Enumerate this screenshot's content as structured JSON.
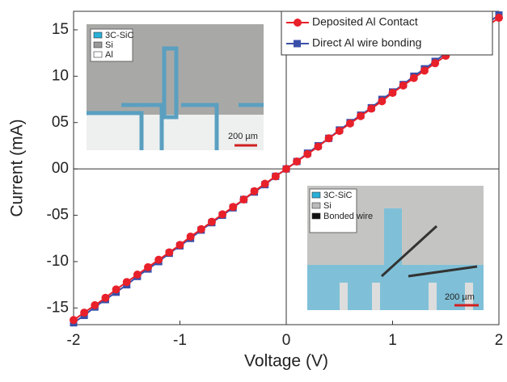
{
  "chart_data": {
    "type": "line",
    "x_label": "Voltage (V)",
    "y_label": "Current (mA)",
    "x": [
      -2,
      -1.9,
      -1.8,
      -1.7,
      -1.6,
      -1.5,
      -1.4,
      -1.3,
      -1.2,
      -1.1,
      -1,
      -0.9,
      -0.8,
      -0.7,
      -0.6,
      -0.5,
      -0.4,
      -0.3,
      -0.2,
      -0.1,
      0,
      0.1,
      0.2,
      0.3,
      0.4,
      0.5,
      0.6,
      0.7,
      0.8,
      0.9,
      1,
      1.1,
      1.2,
      1.3,
      1.4,
      1.5,
      1.6,
      1.7,
      1.8,
      1.9,
      2
    ],
    "series": [
      {
        "name": "Direct Al wire bonding",
        "color": "#3a4fa8",
        "marker": "square",
        "values": [
          -16.6,
          -15.8,
          -14.9,
          -14.1,
          -13.3,
          -12.5,
          -11.6,
          -10.8,
          -10.0,
          -9.1,
          -8.3,
          -7.5,
          -6.6,
          -5.8,
          -5.0,
          -4.2,
          -3.3,
          -2.5,
          -1.7,
          -0.8,
          0,
          0.8,
          1.7,
          2.5,
          3.3,
          4.2,
          5.0,
          5.8,
          6.6,
          7.5,
          8.3,
          9.1,
          10.0,
          10.8,
          11.6,
          12.5,
          13.3,
          14.1,
          14.9,
          15.8,
          16.6
        ]
      },
      {
        "name": "Deposited Al Contact",
        "color": "#e8202a",
        "marker": "circle",
        "values": [
          -16.3,
          -15.5,
          -14.7,
          -13.9,
          -13.0,
          -12.2,
          -11.4,
          -10.6,
          -9.8,
          -9.0,
          -8.2,
          -7.3,
          -6.5,
          -5.7,
          -4.9,
          -4.1,
          -3.3,
          -2.4,
          -1.6,
          -0.8,
          0,
          0.8,
          1.6,
          2.4,
          3.3,
          4.1,
          4.9,
          5.7,
          6.5,
          7.3,
          8.2,
          9.0,
          9.8,
          10.6,
          11.4,
          12.2,
          13.0,
          13.9,
          14.7,
          15.5,
          16.3
        ]
      }
    ],
    "legend_order": [
      1,
      0
    ],
    "xlim": [
      -2,
      2
    ],
    "xticks": [
      -2,
      -1,
      0,
      1,
      2
    ],
    "ylim": [
      -16.8,
      17
    ],
    "yticks": [
      -15,
      -10,
      {
        "value": -5,
        "label": "-05"
      },
      {
        "value": 0,
        "label": "00"
      },
      {
        "value": 5,
        "label": "05"
      },
      10,
      15
    ],
    "insets": [
      {
        "legend": [
          "3C-SiC",
          "Si",
          "Al"
        ],
        "scale_bar": "200 µm"
      },
      {
        "legend": [
          "3C-SiC",
          "Si",
          "Bonded wire"
        ],
        "scale_bar": "200 µm"
      }
    ]
  }
}
